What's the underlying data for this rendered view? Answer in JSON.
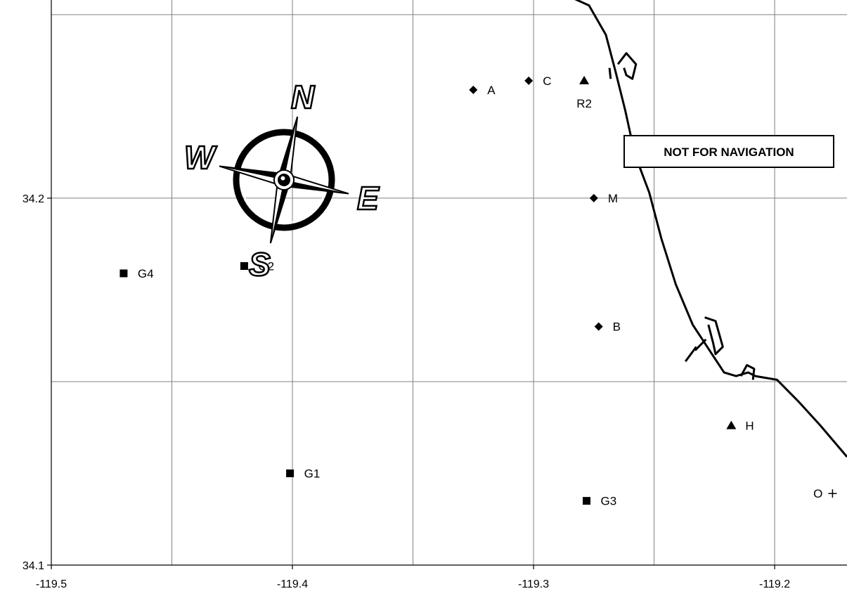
{
  "chart_data": {
    "type": "scatter",
    "xlim": [
      -119.5,
      -119.17
    ],
    "ylim": [
      34.1,
      34.254
    ],
    "x_ticks": [
      -119.5,
      -119.4,
      -119.3,
      -119.2
    ],
    "x_tick_labels": [
      "-119.5",
      "-119.4",
      "-119.3",
      "-119.2"
    ],
    "y_ticks": [
      34.1,
      34.2
    ],
    "y_tick_labels": [
      "34.1",
      "34.2"
    ],
    "grid_x": [
      -119.45,
      -119.4,
      -119.35,
      -119.3,
      -119.25,
      -119.2
    ],
    "grid_y": [
      34.15,
      34.2,
      34.25
    ],
    "grid": true,
    "points": [
      {
        "label": "A",
        "x": -119.325,
        "y": 34.2295,
        "marker": "diamond"
      },
      {
        "label": "C",
        "x": -119.302,
        "y": 34.232,
        "marker": "diamond"
      },
      {
        "label": "R2",
        "x": -119.279,
        "y": 34.232,
        "marker": "triangle"
      },
      {
        "label": "M",
        "x": -119.275,
        "y": 34.2,
        "marker": "diamond"
      },
      {
        "label": "B",
        "x": -119.273,
        "y": 34.165,
        "marker": "diamond"
      },
      {
        "label": "G4",
        "x": -119.47,
        "y": 34.1795,
        "marker": "square"
      },
      {
        "label": "G2",
        "x": -119.42,
        "y": 34.1815,
        "marker": "square"
      },
      {
        "label": "G1",
        "x": -119.401,
        "y": 34.125,
        "marker": "square"
      },
      {
        "label": "G3",
        "x": -119.278,
        "y": 34.1175,
        "marker": "square"
      },
      {
        "label": "H",
        "x": -119.218,
        "y": 34.138,
        "marker": "triangle"
      },
      {
        "label": "O",
        "x": -119.176,
        "y": 34.1195,
        "marker": "plus"
      }
    ],
    "coastline": [
      [
        -119.28,
        34.265
      ],
      [
        -119.287,
        34.2555
      ],
      [
        -119.277,
        34.2525
      ],
      [
        -119.27,
        34.2445
      ],
      [
        -119.266,
        34.2345
      ],
      [
        -119.262,
        34.224
      ],
      [
        -119.258,
        34.212
      ],
      [
        -119.252,
        34.2015
      ],
      [
        -119.247,
        34.189
      ],
      [
        -119.241,
        34.1765
      ],
      [
        -119.234,
        34.1655
      ],
      [
        -119.229,
        34.1605
      ],
      [
        -119.225,
        34.1565
      ],
      [
        -119.221,
        34.1525
      ],
      [
        -119.216,
        34.1515
      ],
      [
        -119.211,
        34.1525
      ],
      [
        -119.208,
        34.1515
      ],
      [
        -119.199,
        34.1505
      ],
      [
        -119.19,
        34.1445
      ],
      [
        -119.181,
        34.138
      ],
      [
        -119.17,
        34.1295
      ]
    ],
    "breakwaters": [
      [
        [
          -119.265,
          34.2365
        ],
        [
          -119.2615,
          34.2395
        ],
        [
          -119.2575,
          34.2365
        ],
        [
          -119.259,
          34.2325
        ],
        [
          -119.2615,
          34.2335
        ],
        [
          -119.2625,
          34.2355
        ]
      ],
      [
        [
          -119.2685,
          34.2355
        ],
        [
          -119.268,
          34.2325
        ]
      ],
      [
        [
          -119.229,
          34.1675
        ],
        [
          -119.2245,
          34.1665
        ],
        [
          -119.2215,
          34.1595
        ],
        [
          -119.2245,
          34.1575
        ],
        [
          -119.2255,
          34.1605
        ],
        [
          -119.2275,
          34.1655
        ]
      ],
      [
        [
          -119.237,
          34.1555
        ],
        [
          -119.2325,
          34.1595
        ]
      ],
      [
        [
          -119.233,
          34.1585
        ],
        [
          -119.2285,
          34.1615
        ]
      ],
      [
        [
          -119.214,
          34.1515
        ],
        [
          -119.2115,
          34.1545
        ],
        [
          -119.2085,
          34.1535
        ],
        [
          -119.209,
          34.1505
        ]
      ]
    ]
  },
  "compass": {
    "n": "N",
    "e": "E",
    "s": "S",
    "w": "W"
  },
  "banner": {
    "text": "NOT FOR NAVIGATION"
  }
}
